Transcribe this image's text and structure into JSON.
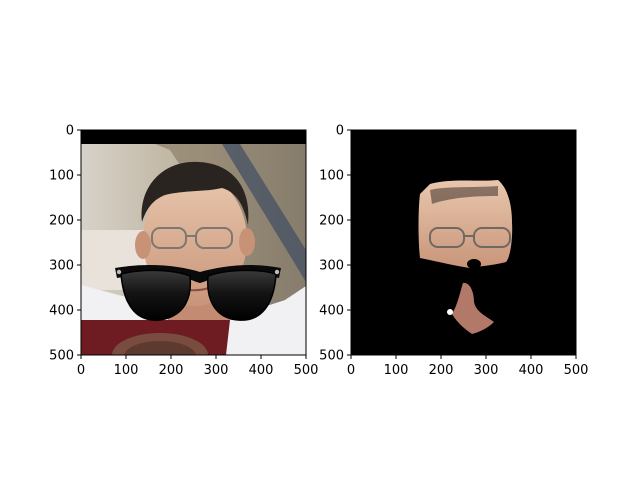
{
  "chart_data": [
    {
      "type": "image",
      "title": "",
      "xlabel": "",
      "ylabel": "",
      "xlim": [
        0,
        500
      ],
      "ylim": [
        500,
        0
      ],
      "xticks": [
        "0",
        "100",
        "200",
        "300",
        "400",
        "500"
      ],
      "yticks": [
        "0",
        "100",
        "200",
        "300",
        "400",
        "500"
      ],
      "content": "face-photo-with-sunglasses-overlay",
      "background": "#000000"
    },
    {
      "type": "image",
      "title": "",
      "xlabel": "",
      "ylabel": "",
      "xlim": [
        0,
        500
      ],
      "ylim": [
        500,
        0
      ],
      "xticks": [
        "0",
        "100",
        "200",
        "300",
        "400",
        "500"
      ],
      "yticks": [
        "0",
        "100",
        "200",
        "300",
        "400",
        "500"
      ],
      "content": "segmented-face-mask-on-black",
      "background": "#000000"
    }
  ]
}
